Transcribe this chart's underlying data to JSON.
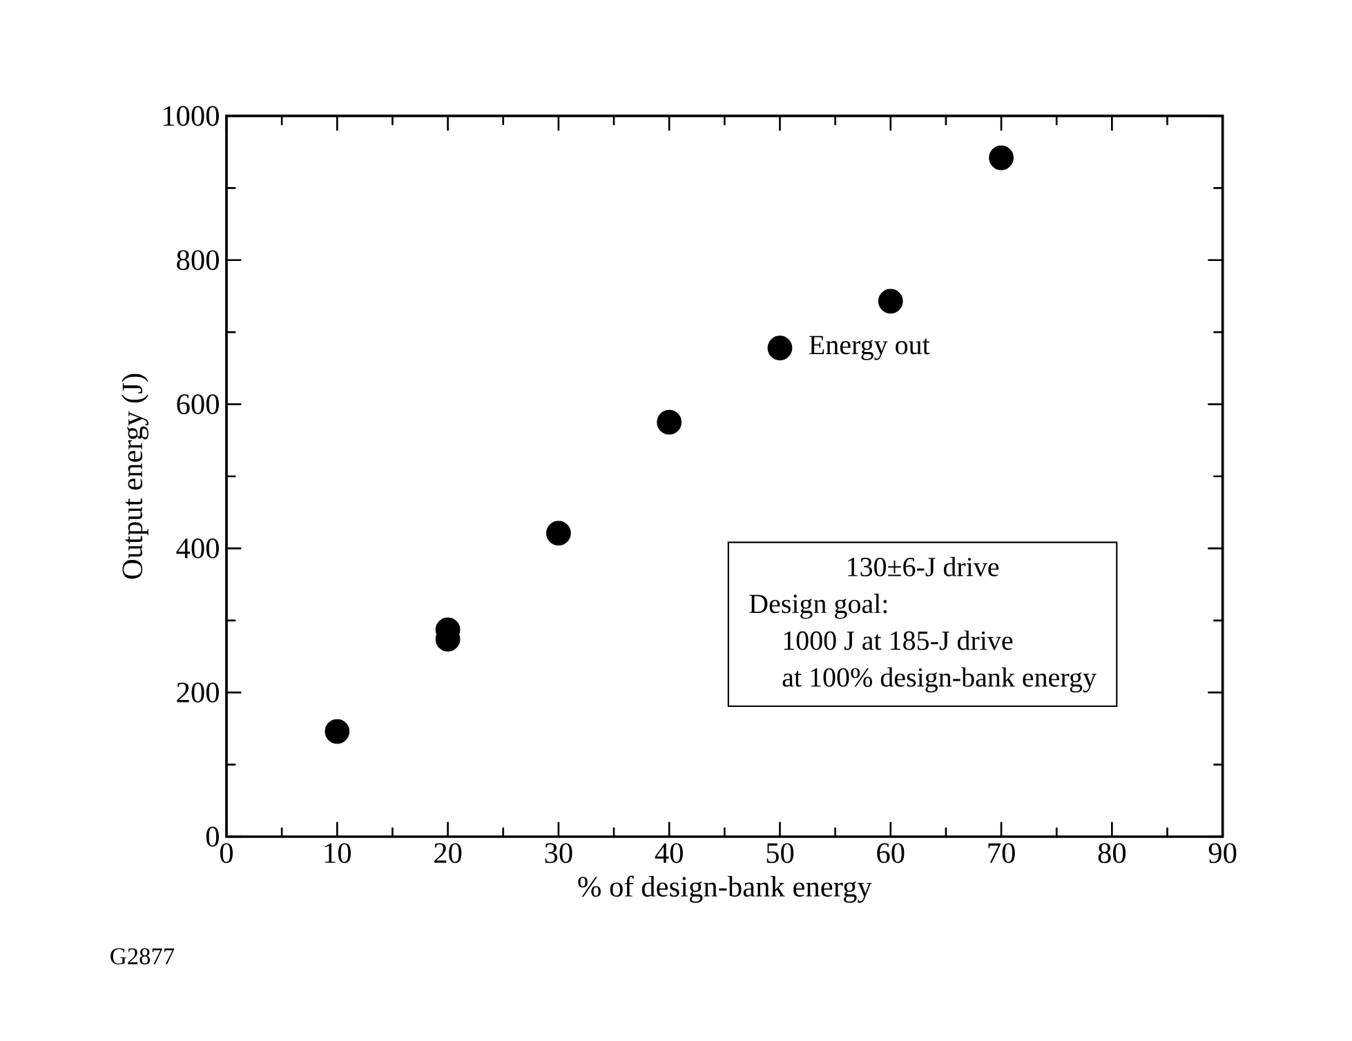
{
  "chart_data": {
    "type": "scatter",
    "xlabel": "% of design-bank energy",
    "ylabel": "Output energy (J)",
    "x": [
      10,
      20,
      20,
      30,
      40,
      50,
      60,
      70
    ],
    "values": [
      146,
      287,
      274,
      421,
      575,
      678,
      743,
      942
    ],
    "color": "#000000",
    "marker": "circle",
    "grid": false,
    "xlim": [
      0,
      90
    ],
    "xticks": [
      0,
      10,
      20,
      30,
      40,
      50,
      60,
      70,
      80,
      90
    ],
    "ylim": [
      0,
      1000
    ],
    "yticks": [
      0,
      200,
      400,
      600,
      800,
      1000
    ],
    "annotations": [
      {
        "text": "Energy out",
        "x": 50,
        "y": 678
      },
      "130±6-J drive",
      "Design goal:",
      "1000 J at 185-J drive",
      "at 100% design-bank energy",
      "G2877"
    ]
  }
}
